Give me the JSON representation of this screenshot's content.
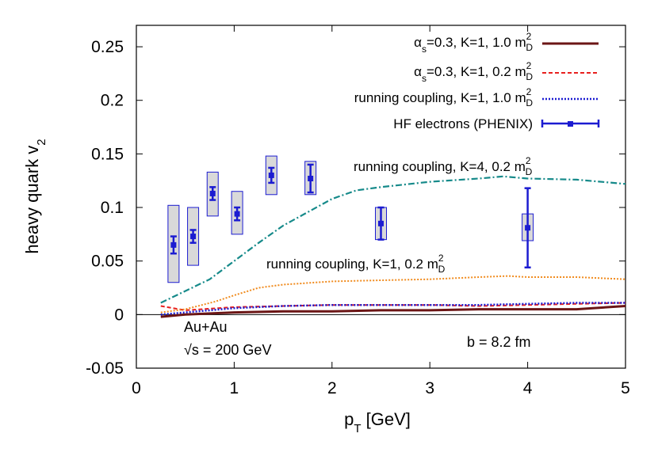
{
  "chart_data": {
    "type": "line",
    "title": "",
    "xlabel": {
      "main": "p",
      "sub": "T",
      "unit": " [GeV]"
    },
    "ylabel": {
      "main": "heavy quark v",
      "sub": "2"
    },
    "xlim": [
      0,
      5
    ],
    "ylim": [
      -0.05,
      0.27
    ],
    "x_ticks": [
      0,
      1,
      2,
      3,
      4,
      5
    ],
    "x_tick_labels": [
      "0",
      "1",
      "2",
      "3",
      "4",
      "5"
    ],
    "y_ticks": [
      -0.05,
      0,
      0.05,
      0.1,
      0.15,
      0.2,
      0.25
    ],
    "y_tick_labels": [
      "-0.05",
      "0",
      "0.05",
      "0.1",
      "0.15",
      "0.2",
      "0.25"
    ],
    "grid": false,
    "zero_line": true,
    "legend_position": "top-right",
    "legend": [
      {
        "key": "s1",
        "sym": "α",
        "symsub": "s",
        "text": "=0.3, K=1, 1.0 m",
        "sup": "2",
        "sub": "D"
      },
      {
        "key": "s2",
        "sym": "α",
        "symsub": "s",
        "text": "=0.3, K=1, 0.2 m",
        "sup": "2",
        "sub": "D"
      },
      {
        "key": "s3",
        "sym": "",
        "symsub": "",
        "text": "running coupling, K=1, 1.0 m",
        "sup": "2",
        "sub": "D"
      },
      {
        "key": "data",
        "sym": "",
        "symsub": "",
        "text": "HF electrons  (PHENIX)",
        "sup": "",
        "sub": ""
      }
    ],
    "series": [
      {
        "key": "s1",
        "color": "#6b1515",
        "dash": "",
        "width": 3,
        "x": [
          0.25,
          0.5,
          1.0,
          1.5,
          2.0,
          2.5,
          3.0,
          3.5,
          4.0,
          4.5,
          5.0
        ],
        "y": [
          -0.002,
          0.0,
          0.002,
          0.003,
          0.003,
          0.004,
          0.004,
          0.005,
          0.005,
          0.005,
          0.008
        ]
      },
      {
        "key": "s2",
        "color": "#e8201e",
        "dash": "5,3",
        "width": 2,
        "x": [
          0.25,
          0.5,
          1.0,
          1.5,
          2.0,
          2.5,
          3.0,
          3.5,
          4.0,
          4.5,
          5.0
        ],
        "y": [
          0.008,
          0.004,
          0.007,
          0.008,
          0.009,
          0.009,
          0.009,
          0.008,
          0.009,
          0.01,
          0.011
        ]
      },
      {
        "key": "s3",
        "color": "#1c1cd1",
        "dash": "2,2",
        "width": 2.5,
        "x": [
          0.25,
          0.5,
          1.0,
          1.5,
          2.0,
          2.5,
          3.0,
          3.5,
          4.0,
          4.5,
          5.0
        ],
        "y": [
          0.0,
          0.002,
          0.006,
          0.008,
          0.009,
          0.009,
          0.009,
          0.009,
          0.01,
          0.011,
          0.011
        ]
      },
      {
        "key": "s4",
        "color": "#f08a1c",
        "dash": "2,2",
        "width": 2,
        "x": [
          0.25,
          0.5,
          0.8,
          1.0,
          1.25,
          1.5,
          2.0,
          2.5,
          3.0,
          3.5,
          3.8,
          4.0,
          4.5,
          5.0
        ],
        "y": [
          0.002,
          0.005,
          0.012,
          0.018,
          0.025,
          0.028,
          0.031,
          0.032,
          0.033,
          0.035,
          0.036,
          0.035,
          0.035,
          0.033
        ]
      },
      {
        "key": "s5",
        "color": "#168a8a",
        "dash": "8,3,2,3",
        "width": 2.2,
        "x": [
          0.25,
          0.5,
          0.75,
          1.0,
          1.25,
          1.5,
          2.0,
          2.25,
          2.5,
          3.0,
          3.5,
          3.75,
          4.0,
          4.5,
          5.0
        ],
        "y": [
          0.011,
          0.022,
          0.033,
          0.05,
          0.067,
          0.083,
          0.108,
          0.116,
          0.119,
          0.124,
          0.127,
          0.129,
          0.127,
          0.126,
          0.122
        ]
      }
    ],
    "data_points": [
      {
        "x": 0.38,
        "y": 0.065,
        "err": 0.008,
        "sys_lo": 0.03,
        "sys_hi": 0.102
      },
      {
        "x": 0.58,
        "y": 0.073,
        "err": 0.006,
        "sys_lo": 0.046,
        "sys_hi": 0.1
      },
      {
        "x": 0.78,
        "y": 0.113,
        "err": 0.006,
        "sys_lo": 0.092,
        "sys_hi": 0.133
      },
      {
        "x": 1.03,
        "y": 0.094,
        "err": 0.006,
        "sys_lo": 0.075,
        "sys_hi": 0.115
      },
      {
        "x": 1.38,
        "y": 0.13,
        "err": 0.007,
        "sys_lo": 0.112,
        "sys_hi": 0.148
      },
      {
        "x": 1.78,
        "y": 0.127,
        "err": 0.013,
        "sys_lo": 0.112,
        "sys_hi": 0.143
      },
      {
        "x": 2.5,
        "y": 0.085,
        "err": 0.015,
        "sys_lo": 0.07,
        "sys_hi": 0.1
      },
      {
        "x": 4.0,
        "y": 0.081,
        "err": 0.037,
        "sys_lo": 0.069,
        "sys_hi": 0.094
      }
    ],
    "data_color": "#1c1cd1",
    "annotations": [
      {
        "text": "running coupling, K=4, 0.2 m",
        "sup": "2",
        "sub": "D",
        "x": 2.23,
        "y": 0.135
      },
      {
        "text": "running coupling, K=1, 0.2 m",
        "sup": "2",
        "sub": "D",
        "x": 1.37,
        "y": 0.042
      }
    ],
    "info": {
      "system": "Au+Au",
      "energy": "√s = 200 GeV",
      "impact": "b = 8.2 fm"
    }
  }
}
